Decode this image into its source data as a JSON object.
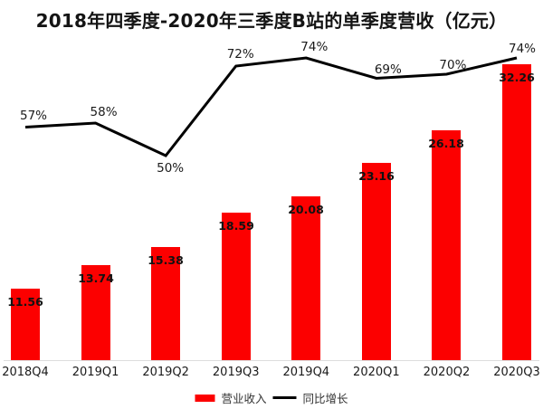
{
  "title": "2018年四季度-2020年三季度B站的单季度营收（亿元）",
  "legend": {
    "revenue_label": "营业收入",
    "growth_label": "同比增长"
  },
  "colors": {
    "bar": "#fc0000",
    "line": "#000000",
    "axis": "#dddddd",
    "text": "#1a1a1a"
  },
  "chart_data": {
    "type": "bar+line",
    "title": "2018年四季度-2020年三季度B站的单季度营收（亿元）",
    "categories": [
      "2018Q4",
      "2019Q1",
      "2019Q2",
      "2019Q3",
      "2019Q4",
      "2020Q1",
      "2020Q2",
      "2020Q3"
    ],
    "series": [
      {
        "name": "营业收入",
        "type": "bar",
        "unit": "亿元",
        "values": [
          11.56,
          13.74,
          15.38,
          18.59,
          20.08,
          23.16,
          26.18,
          32.26
        ],
        "labels": [
          "11.56",
          "13.74",
          "15.38",
          "18.59",
          "20.08",
          "23.16",
          "26.18",
          "32.26"
        ]
      },
      {
        "name": "同比增长",
        "type": "line",
        "unit": "%",
        "values": [
          57,
          58,
          50,
          72,
          74,
          69,
          70,
          74
        ],
        "labels": [
          "57%",
          "58%",
          "50%",
          "72%",
          "74%",
          "69%",
          "70%",
          "74%"
        ]
      }
    ],
    "legend_position": "bottom",
    "grid": false,
    "y_axis_visible": false
  }
}
